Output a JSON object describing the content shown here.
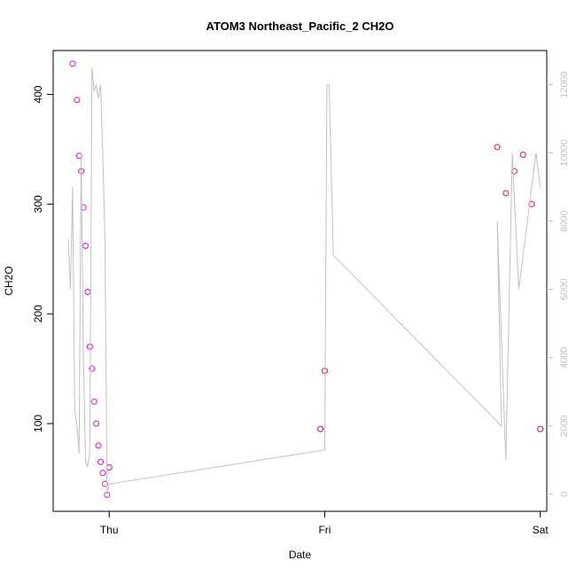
{
  "chart_data": {
    "type": "scatter",
    "title": "ATOM3 Northeast_Pacific_2 CH2O",
    "xlabel": "Date",
    "ylabel": "CH2O",
    "x_ticks": [
      "Thu",
      "Fri",
      "Sat"
    ],
    "xlim": [
      -0.26,
      2.03
    ],
    "ylim": [
      20,
      440
    ],
    "y_ticks": [
      100,
      200,
      300,
      400
    ],
    "y2lim": [
      -500,
      13000
    ],
    "y2_ticks": [
      0,
      2000,
      4000,
      6000,
      8000,
      10000,
      12000
    ],
    "grid": false,
    "colors": {
      "points_a": "#ff00cc",
      "points_b": "#ff0066",
      "line": "#c0c0c0",
      "axis": "#000000",
      "right_axis": "#c0c0c0"
    },
    "series": [
      {
        "kind": "points",
        "color_key": "points_a",
        "x_days": [
          -0.17,
          -0.15,
          -0.14,
          -0.13,
          -0.12,
          -0.11,
          -0.1,
          -0.09,
          -0.08,
          -0.07,
          -0.06,
          -0.05,
          -0.04,
          -0.03,
          -0.02,
          -0.01
        ],
        "y_values": [
          428,
          395,
          344,
          330,
          297,
          262,
          220,
          170,
          150,
          120,
          100,
          80,
          65,
          55,
          45,
          35
        ]
      },
      {
        "kind": "points",
        "color_key": "points_b",
        "x_days": [
          0.0,
          0.98,
          1.0,
          1.8,
          1.84,
          1.88,
          1.92,
          1.96,
          2.0
        ],
        "y_values": [
          60,
          95,
          148,
          352,
          310,
          330,
          345,
          300,
          95
        ]
      },
      {
        "kind": "line",
        "color_key": "line",
        "x_days": [
          -0.19,
          -0.18,
          -0.17,
          -0.16,
          -0.15,
          -0.14,
          -0.13,
          -0.12,
          -0.11,
          -0.1,
          -0.09,
          -0.08,
          -0.07,
          -0.06,
          -0.05,
          -0.04,
          -0.03,
          -0.02,
          -0.01,
          0.0,
          1.0,
          1.01,
          1.02,
          1.03,
          1.04,
          1.82,
          1.8,
          1.84,
          1.87,
          1.9,
          1.94,
          1.98,
          2.0
        ],
        "y2_values": [
          7500,
          6000,
          9000,
          2500,
          2000,
          1200,
          10000,
          4000,
          1000,
          800,
          1200,
          12500,
          11800,
          12000,
          11600,
          12000,
          10000,
          7500,
          0,
          300,
          1300,
          12000,
          12000,
          9500,
          7000,
          2000,
          8000,
          1000,
          10000,
          6000,
          8000,
          10000,
          9000
        ]
      }
    ]
  }
}
